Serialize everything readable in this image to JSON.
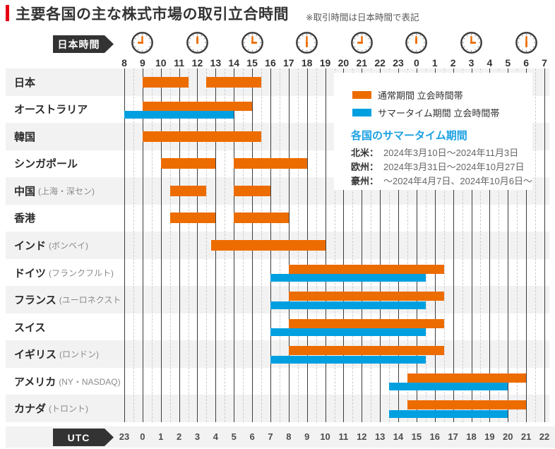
{
  "title": "主要各国の主な株式市場の取引立合時間",
  "note": "※取引時間は日本時間で表記",
  "colors": {
    "normal_bar": "#ed6c00",
    "summer_bar": "#00a0e0",
    "title_accent": "#e60012",
    "pennant_bg": "#333333",
    "row_band": "#f2f2f2",
    "dst_heading": "#1da1e2"
  },
  "legend": {
    "normal_label": "通常期間 立会時間帯",
    "summer_label": "サマータイム期間 立会時間帯"
  },
  "dst_info": {
    "heading": "各国のサマータイム期間",
    "items": [
      {
        "region": "北米：",
        "period": "2024年3月10日〜2024年11月3日"
      },
      {
        "region": "欧州：",
        "period": "2024年3月31日〜2024年10月27日"
      },
      {
        "region": "豪州：",
        "period": "〜2024年4月7日、2024年10月6日〜"
      }
    ]
  },
  "chart_data": {
    "type": "gantt",
    "title": "主要各国の主な株式市場の取引立合時間",
    "axis_top": {
      "label": "日本時間",
      "hours": [
        "8",
        "9",
        "10",
        "11",
        "12",
        "13",
        "14",
        "15",
        "16",
        "17",
        "18",
        "19",
        "20",
        "21",
        "22",
        "23",
        "0",
        "1",
        "2",
        "3",
        "4",
        "5",
        "6",
        "7"
      ]
    },
    "axis_bottom": {
      "label": "UTC",
      "hours": [
        "23",
        "0",
        "1",
        "2",
        "3",
        "4",
        "5",
        "6",
        "7",
        "8",
        "9",
        "10",
        "11",
        "12",
        "13",
        "14",
        "15",
        "16",
        "17",
        "18",
        "19",
        "20",
        "21",
        "22"
      ]
    },
    "clock_hours": [
      9,
      12,
      15,
      18,
      21,
      0,
      3,
      6
    ],
    "hour_range_jst": [
      8,
      31
    ],
    "grid": {
      "solid_every_hours": 1,
      "dashed_every_hours": 0.5
    },
    "rows": [
      {
        "name": "日本",
        "sub": "",
        "bars": [
          {
            "type": "normal",
            "start": 9,
            "end": 11.5
          },
          {
            "type": "normal",
            "start": 12.5,
            "end": 15.5
          }
        ]
      },
      {
        "name": "オーストラリア",
        "sub": "",
        "bars": [
          {
            "type": "normal",
            "start": 9,
            "end": 15
          },
          {
            "type": "summer",
            "start": 8,
            "end": 14
          }
        ]
      },
      {
        "name": "韓国",
        "sub": "",
        "bars": [
          {
            "type": "normal",
            "start": 9,
            "end": 15.5
          }
        ]
      },
      {
        "name": "シンガポール",
        "sub": "",
        "bars": [
          {
            "type": "normal",
            "start": 10,
            "end": 13
          },
          {
            "type": "normal",
            "start": 14,
            "end": 18
          }
        ]
      },
      {
        "name": "中国",
        "sub": "(上海・深セン)",
        "bars": [
          {
            "type": "normal",
            "start": 10.5,
            "end": 12.5
          },
          {
            "type": "normal",
            "start": 14,
            "end": 16
          }
        ]
      },
      {
        "name": "香港",
        "sub": "",
        "bars": [
          {
            "type": "normal",
            "start": 10.5,
            "end": 13
          },
          {
            "type": "normal",
            "start": 14,
            "end": 17
          }
        ]
      },
      {
        "name": "インド",
        "sub": "(ボンベイ)",
        "bars": [
          {
            "type": "normal",
            "start": 12.75,
            "end": 19
          }
        ]
      },
      {
        "name": "ドイツ",
        "sub": "(フランクフルト)",
        "bars": [
          {
            "type": "normal",
            "start": 17,
            "end": 25.5
          },
          {
            "type": "summer",
            "start": 16,
            "end": 24.5
          }
        ]
      },
      {
        "name": "フランス",
        "sub": "(ユーロネクスト",
        "bars": [
          {
            "type": "normal",
            "start": 17,
            "end": 25.5
          },
          {
            "type": "summer",
            "start": 16,
            "end": 24.5
          }
        ]
      },
      {
        "name": "スイス",
        "sub": "",
        "bars": [
          {
            "type": "normal",
            "start": 17,
            "end": 25.5
          },
          {
            "type": "summer",
            "start": 16,
            "end": 24.5
          }
        ]
      },
      {
        "name": "イギリス",
        "sub": "(ロンドン)",
        "bars": [
          {
            "type": "normal",
            "start": 17,
            "end": 25.5
          },
          {
            "type": "summer",
            "start": 16,
            "end": 24.5
          }
        ]
      },
      {
        "name": "アメリカ",
        "sub": "(NY・NASDAQ)",
        "bars": [
          {
            "type": "normal",
            "start": 23.5,
            "end": 30
          },
          {
            "type": "summer",
            "start": 22.5,
            "end": 29
          }
        ]
      },
      {
        "name": "カナダ",
        "sub": "(トロント)",
        "bars": [
          {
            "type": "normal",
            "start": 23.5,
            "end": 30
          },
          {
            "type": "summer",
            "start": 22.5,
            "end": 29
          }
        ]
      }
    ]
  }
}
